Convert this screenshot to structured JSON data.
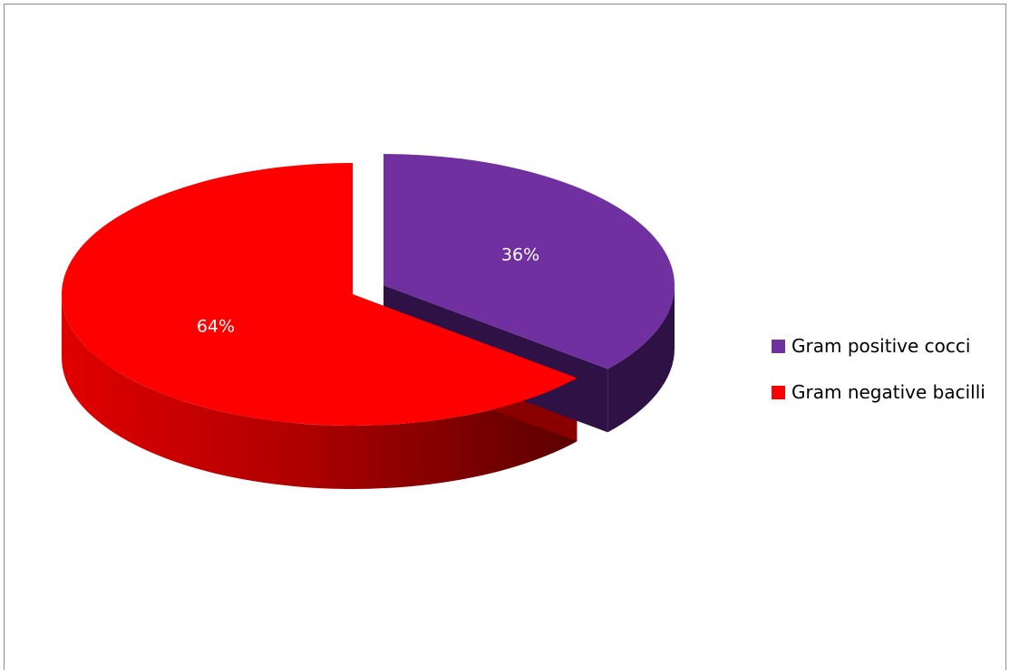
{
  "chart_data": {
    "type": "pie",
    "style": "3d-exploded",
    "categories": [
      "Gram positive cocci",
      "Gram negative bacilli"
    ],
    "values": [
      36,
      64
    ],
    "data_labels": [
      "36%",
      "64%"
    ],
    "colors": [
      "#7030a0",
      "#ff0000"
    ],
    "legend_position": "right",
    "title": ""
  }
}
